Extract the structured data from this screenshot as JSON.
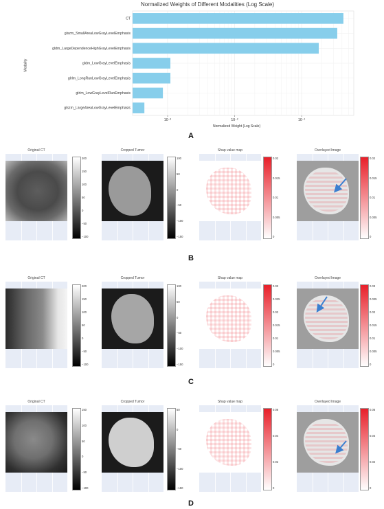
{
  "panel_a": {
    "letter": "A",
    "chart_data": {
      "type": "bar",
      "orientation": "horizontal",
      "title": "Normalized Weights of Different Modalities (Log Scale)",
      "xlabel": "Normalized Weight (Log Scale)",
      "ylabel": "Modality",
      "xscale": "log",
      "xlim": [
        0.0003,
        0.6
      ],
      "xticks": [
        "10⁻³",
        "10⁻²",
        "10⁻¹"
      ],
      "xtick_values": [
        0.001,
        0.01,
        0.1
      ],
      "categories": [
        "CT",
        "glszm_SmallAreaLowGrayLevelEmphasis",
        "gldm_LargeDependenceHighGrayLevelEmphasis",
        "gldm_LowGrayLevelEmphasis",
        "glrlm_LongRunLowGrayLevelEmphasis",
        "glrlm_LowGrayLevelRunEmphasis",
        "glszm_LargeAreaLowGrayLevelEmphasis"
      ],
      "values": [
        0.42,
        0.34,
        0.18,
        0.0011,
        0.0011,
        0.00085,
        0.00045
      ],
      "bar_color": "#87ceeb",
      "grid": true
    }
  },
  "rows": [
    {
      "letter": "B",
      "titles": [
        "Original CT",
        "Cropped Tumor",
        "Shap value map",
        "Overlayed Image"
      ],
      "ct_ticks": [
        "200",
        "150",
        "100",
        "50",
        "0",
        "−50",
        "−100"
      ],
      "tumor_ticks": [
        "100",
        "50",
        "0",
        "−50",
        "−100",
        "−150"
      ],
      "shap_ticks": [
        "0.02",
        "0.015",
        "0.01",
        "0.005",
        "0"
      ],
      "overlay_ticks": [
        "0.02",
        "0.015",
        "0.01",
        "0.005",
        "0"
      ]
    },
    {
      "letter": "C",
      "titles": [
        "Original CT",
        "Cropped Tumor",
        "Shap value map",
        "Overlayed Image"
      ],
      "ct_ticks": [
        "200",
        "150",
        "100",
        "50",
        "0",
        "−50",
        "−100"
      ],
      "tumor_ticks": [
        "100",
        "50",
        "0",
        "−50",
        "−100",
        "−150"
      ],
      "shap_ticks": [
        "0.03",
        "0.025",
        "0.02",
        "0.015",
        "0.01",
        "0.005",
        "0"
      ],
      "overlay_ticks": [
        "0.03",
        "0.025",
        "0.02",
        "0.015",
        "0.01",
        "0.005",
        "0"
      ]
    },
    {
      "letter": "D",
      "titles": [
        "Original CT",
        "Cropped Tumor",
        "Shap value map",
        "Overlayed Image"
      ],
      "ct_ticks": [
        "150",
        "100",
        "50",
        "0",
        "−50",
        "−100"
      ],
      "tumor_ticks": [
        "50",
        "0",
        "−50",
        "−100",
        "−150"
      ],
      "shap_ticks": [
        "0.06",
        "0.04",
        "0.02",
        "0"
      ],
      "overlay_ticks": [
        "0.06",
        "0.04",
        "0.02",
        "0"
      ]
    }
  ],
  "colors": {
    "bar": "#87ceeb",
    "shap": "#e8202a",
    "arrow": "#3b7fd0",
    "pane_bg": "#e7ecf6"
  }
}
